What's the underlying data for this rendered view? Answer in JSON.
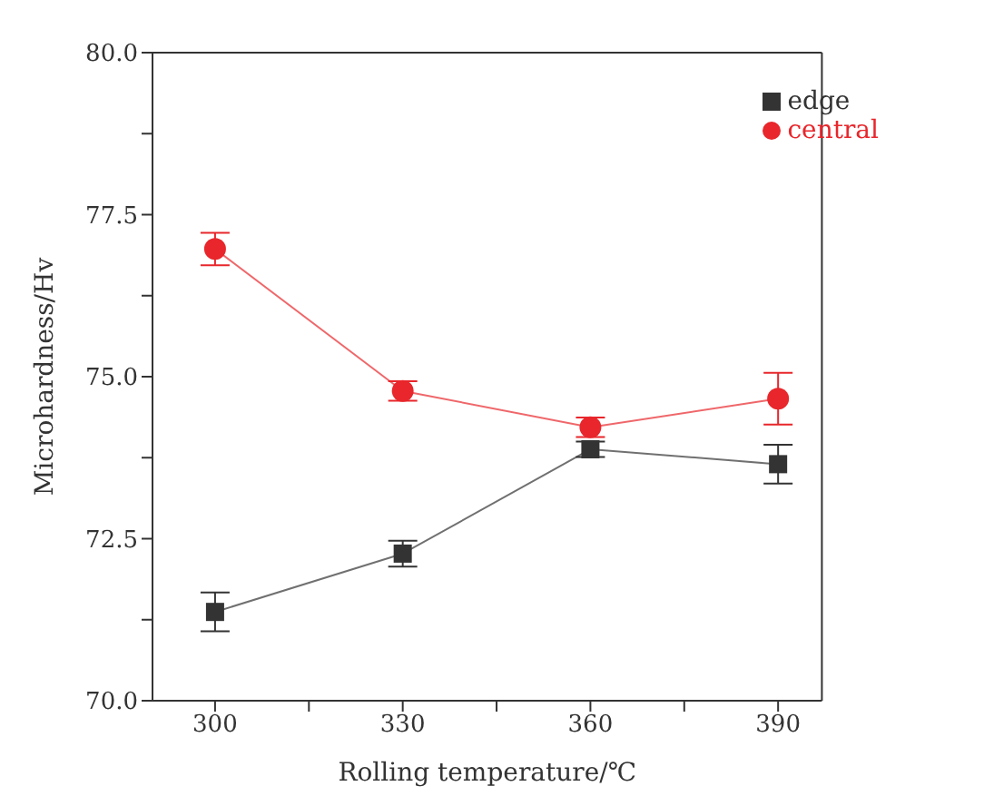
{
  "chart_data": {
    "type": "line",
    "xlabel": "Rolling temperature/℃",
    "ylabel": "Microhardness/Hv",
    "x": [
      300,
      330,
      360,
      390
    ],
    "xlim": [
      290,
      397
    ],
    "xticks": [
      300,
      {
        "value": 315,
        "label": null
      },
      330,
      {
        "value": 345,
        "label": null
      },
      360,
      {
        "value": 375,
        "label": null
      },
      390
    ],
    "ylim": [
      70,
      80
    ],
    "yticks": [
      {
        "value": 70,
        "label": "70.0"
      },
      {
        "value": 71.25,
        "label": null
      },
      {
        "value": 72.5,
        "label": "72.5"
      },
      {
        "value": 73.75,
        "label": null
      },
      {
        "value": 75,
        "label": "75.0"
      },
      {
        "value": 76.25,
        "label": null
      },
      {
        "value": 77.5,
        "label": "77.5"
      },
      {
        "value": 78.75,
        "label": null
      },
      {
        "value": 80,
        "label": "80.0"
      }
    ],
    "legend": "top right",
    "grid": false,
    "series": [
      {
        "name": "edge",
        "color": "#333333",
        "marker": "square",
        "values": [
          71.37,
          72.27,
          73.88,
          73.65
        ],
        "errors": [
          0.3,
          0.2,
          0.12,
          0.3
        ]
      },
      {
        "name": "central",
        "color": "#e8262b",
        "marker": "circle",
        "values": [
          76.97,
          74.78,
          74.22,
          74.66
        ],
        "errors": [
          0.25,
          0.15,
          0.15,
          0.4
        ]
      }
    ]
  }
}
